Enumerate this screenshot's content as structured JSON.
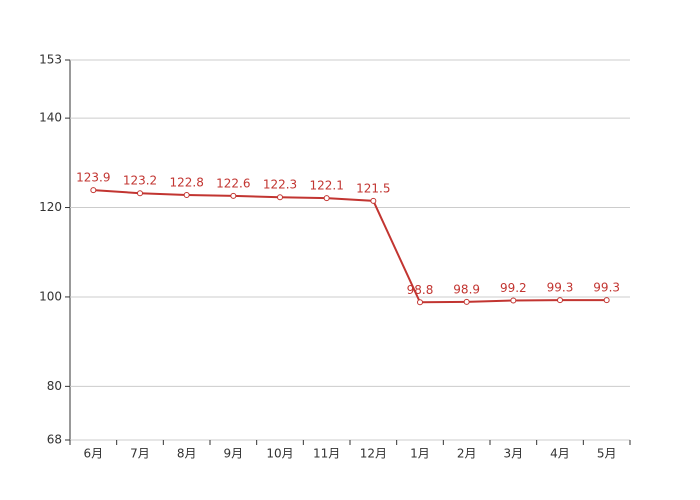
{
  "chart_data": {
    "type": "line",
    "categories": [
      "6月",
      "7月",
      "8月",
      "9月",
      "10月",
      "11月",
      "12月",
      "1月",
      "2月",
      "3月",
      "4月",
      "5月"
    ],
    "values": [
      123.9,
      123.2,
      122.8,
      122.6,
      122.3,
      122.1,
      121.5,
      98.8,
      98.9,
      99.2,
      99.3,
      99.3
    ],
    "color": "#c23531",
    "ylim": [
      68,
      153
    ],
    "yticks": [
      68,
      80,
      100,
      120,
      140,
      153
    ],
    "grid": true
  }
}
